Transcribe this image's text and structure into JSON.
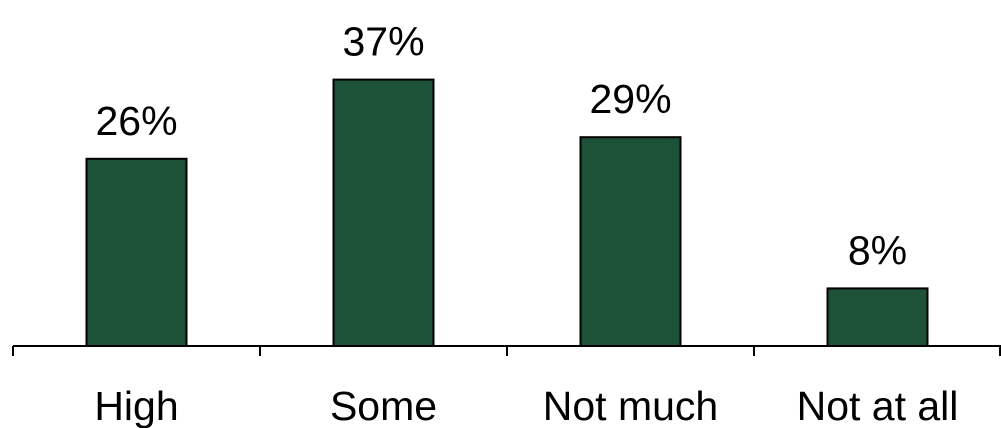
{
  "chart_data": {
    "type": "bar",
    "categories": [
      "High",
      "Some",
      "Not much",
      "Not at all"
    ],
    "values": [
      26,
      37,
      29,
      8
    ],
    "value_labels": [
      "26%",
      "37%",
      "29%",
      "8%"
    ],
    "ylim": [
      0,
      45
    ],
    "grid": false,
    "legend": "none",
    "colors": {
      "bar_fill": "#1e5238",
      "bar_stroke": "#000000",
      "axis": "#000000",
      "text": "#000000"
    }
  }
}
